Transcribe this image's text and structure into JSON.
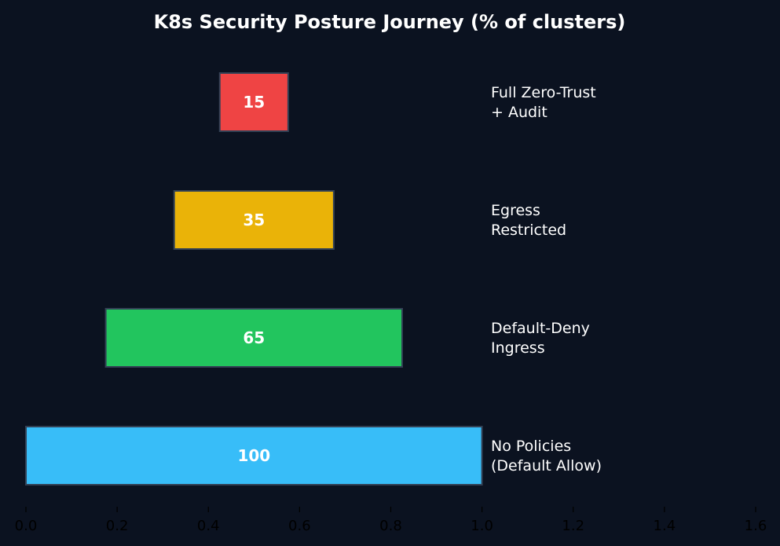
{
  "chart_data": {
    "type": "bar",
    "orientation": "horizontal-funnel",
    "title": "K8s Security Posture Journey (% of clusters)",
    "xlabel": "",
    "ylabel": "",
    "xlim": [
      0.0,
      1.6
    ],
    "x_ticks": [
      "0.0",
      "0.2",
      "0.4",
      "0.6",
      "0.8",
      "1.0",
      "1.2",
      "1.4",
      "1.6"
    ],
    "grid": false,
    "categories": [
      [
        "No Policies",
        "(Default Allow)"
      ],
      [
        "Default-Deny",
        "Ingress"
      ],
      [
        "Egress",
        "Restricted"
      ],
      [
        "Full Zero-Trust",
        "+ Audit"
      ]
    ],
    "values": [
      100,
      65,
      35,
      15
    ],
    "value_labels": [
      "100",
      "65",
      "35",
      "15"
    ],
    "colors": [
      "#38bdf8",
      "#22c55e",
      "#eab308",
      "#ef4444"
    ],
    "background": "#0b1220",
    "bar_edge_color": "#334155"
  }
}
